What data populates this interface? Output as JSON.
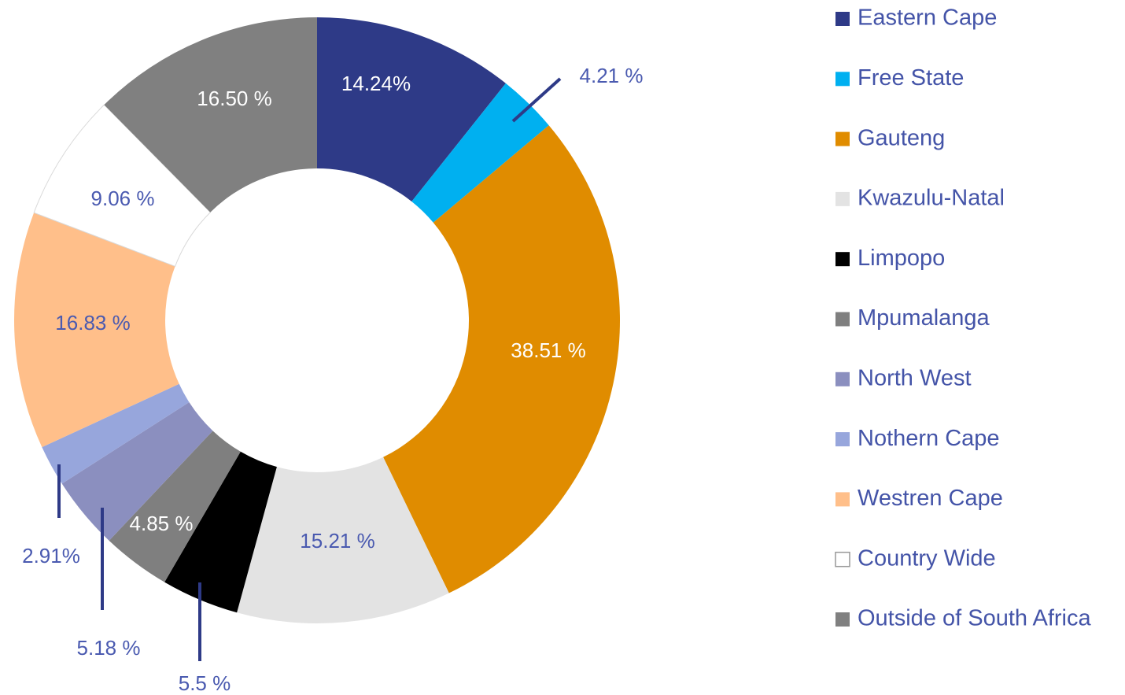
{
  "chart_data": {
    "type": "donut",
    "categories": [
      "Eastern Cape",
      "Free State",
      "Gauteng",
      "Kwazulu-Natal",
      "Limpopo",
      "Mpumalanga",
      "North West",
      "Nothern Cape",
      "Westren Cape",
      "Country Wide",
      "Outside of South Africa"
    ],
    "values": [
      14.24,
      4.21,
      38.51,
      15.21,
      5.5,
      4.85,
      5.18,
      2.91,
      16.83,
      9.06,
      16.5
    ],
    "value_labels": [
      "14.24%",
      "4.21 %",
      "38.51 %",
      "15.21 %",
      "5.5 %",
      "4.85 %",
      "5.18 %",
      "2.91%",
      "16.83 %",
      "9.06 %",
      "16.50 %"
    ],
    "colors": [
      "#2e3a87",
      "#00b0f0",
      "#e08c00",
      "#e3e3e3",
      "#000000",
      "#7f7f7f",
      "#8b8fbf",
      "#97a6dc",
      "#ffbf8a",
      "#ffffff",
      "#808080"
    ],
    "legend": "right"
  }
}
